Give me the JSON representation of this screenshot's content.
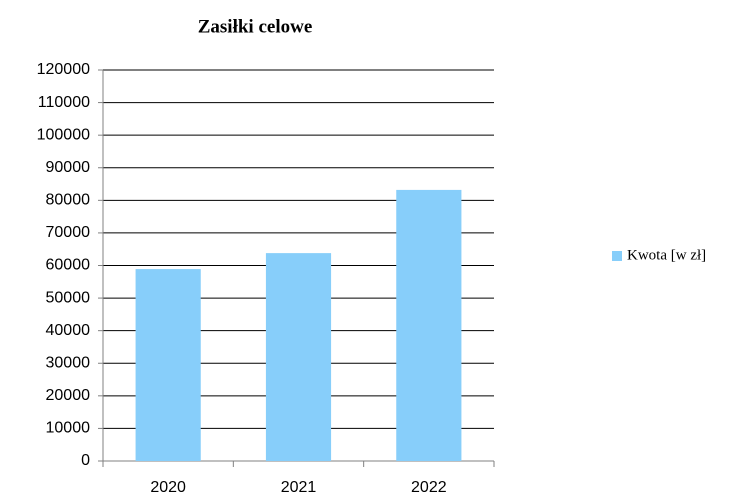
{
  "chart_data": {
    "type": "bar",
    "title": "Zasiłki celowe",
    "categories": [
      "2020",
      "2021",
      "2022"
    ],
    "series": [
      {
        "name": "Kwota [w zł]",
        "color": "#87cefa",
        "values": [
          58900,
          63800,
          83200
        ]
      }
    ],
    "ylim": [
      0,
      120000
    ],
    "yticks": [
      0,
      10000,
      20000,
      30000,
      40000,
      50000,
      60000,
      70000,
      80000,
      90000,
      100000,
      110000,
      120000
    ],
    "grid": true,
    "legend": "right"
  }
}
